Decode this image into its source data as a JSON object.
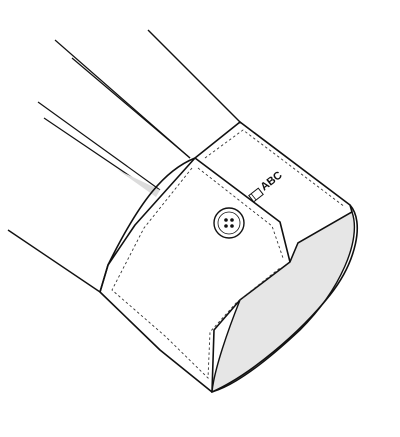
{
  "illustration": {
    "monogram": "ABC",
    "colors": {
      "outline": "#111111",
      "fill": "#ffffff",
      "cuff_inner": "#e6e6e6",
      "sleeve_shadow": "#dcdcdc"
    },
    "icons": {
      "button": "four-hole-button",
      "label_tag": "small-label-tag"
    }
  }
}
